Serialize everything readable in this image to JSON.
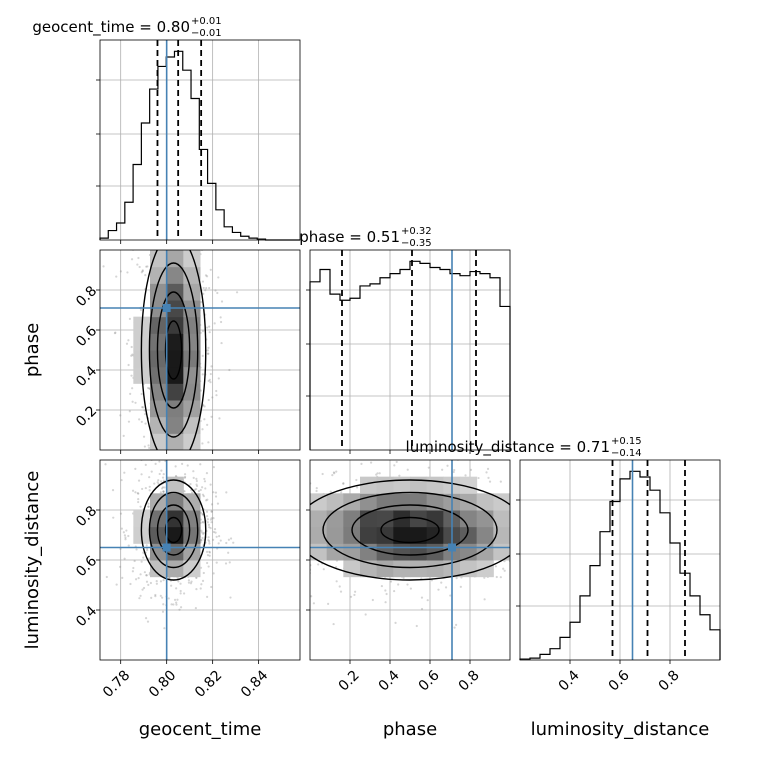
{
  "chart_data": {
    "type": "corner",
    "parameters": [
      "geocent_time",
      "phase",
      "luminosity_distance"
    ],
    "truths": {
      "geocent_time": 0.8,
      "phase": 0.71,
      "luminosity_distance": 0.65
    },
    "titles": [
      {
        "param": "geocent_time",
        "text": "geocent_time = 0.80",
        "plus": "+0.01",
        "minus": "−0.01"
      },
      {
        "param": "phase",
        "text": "phase = 0.51",
        "plus": "+0.32",
        "minus": "−0.35"
      },
      {
        "param": "luminosity_distance",
        "text": "luminosity_distance = 0.71",
        "plus": "+0.15",
        "minus": "−0.14"
      }
    ],
    "axes": {
      "geocent_time": {
        "range": [
          0.771,
          0.858
        ],
        "ticks": [
          0.78,
          0.8,
          0.82,
          0.84
        ],
        "tick_labels": [
          "0.78",
          "0.80",
          "0.82",
          "0.84"
        ],
        "label": "geocent_time"
      },
      "phase": {
        "range": [
          0.0,
          1.0
        ],
        "ticks": [
          0.2,
          0.4,
          0.6,
          0.8
        ],
        "tick_labels": [
          "0.2",
          "0.4",
          "0.6",
          "0.8"
        ],
        "label": "phase"
      },
      "luminosity_distance": {
        "range": [
          0.2,
          1.0
        ],
        "ticks": [
          0.4,
          0.6,
          0.8
        ],
        "tick_labels": [
          "0.4",
          "0.6",
          "0.8"
        ],
        "label": "luminosity_distance"
      }
    },
    "histograms": {
      "geocent_time": {
        "edges": [
          0.771,
          0.7746,
          0.7782,
          0.7818,
          0.7854,
          0.789,
          0.7926,
          0.7962,
          0.7998,
          0.8034,
          0.807,
          0.8106,
          0.8142,
          0.8178,
          0.8214,
          0.825,
          0.8286,
          0.8322,
          0.8358,
          0.8394,
          0.843,
          0.858
        ],
        "counts": [
          0.01,
          0.05,
          0.09,
          0.2,
          0.4,
          0.62,
          0.8,
          0.92,
          0.97,
          1.0,
          0.9,
          0.75,
          0.48,
          0.3,
          0.16,
          0.07,
          0.04,
          0.02,
          0.01,
          0.005,
          0.0
        ],
        "quantiles": [
          0.796,
          0.805,
          0.815
        ]
      },
      "phase": {
        "edges": [
          0.0,
          0.05,
          0.1,
          0.15,
          0.2,
          0.25,
          0.3,
          0.35,
          0.4,
          0.45,
          0.5,
          0.55,
          0.6,
          0.65,
          0.7,
          0.75,
          0.8,
          0.85,
          0.9,
          0.95,
          1.0
        ],
        "counts": [
          0.82,
          0.88,
          0.76,
          0.73,
          0.74,
          0.8,
          0.81,
          0.84,
          0.86,
          0.88,
          0.92,
          0.91,
          0.89,
          0.88,
          0.86,
          0.85,
          0.87,
          0.86,
          0.84,
          0.7
        ],
        "quantiles": [
          0.16,
          0.51,
          0.83
        ]
      },
      "luminosity_distance": {
        "edges": [
          0.2,
          0.24,
          0.28,
          0.32,
          0.36,
          0.4,
          0.44,
          0.48,
          0.52,
          0.56,
          0.6,
          0.64,
          0.68,
          0.72,
          0.76,
          0.8,
          0.84,
          0.88,
          0.92,
          0.96,
          1.0
        ],
        "counts": [
          0.005,
          0.01,
          0.03,
          0.06,
          0.12,
          0.2,
          0.34,
          0.5,
          0.68,
          0.84,
          0.96,
          1.0,
          0.97,
          0.9,
          0.78,
          0.62,
          0.46,
          0.34,
          0.24,
          0.16
        ],
        "quantiles": [
          0.57,
          0.71,
          0.86
        ]
      }
    },
    "density_2d": [
      {
        "x": "geocent_time",
        "y": "phase",
        "mu": [
          0.803,
          0.5
        ],
        "sigma": [
          0.007,
          0.29
        ]
      },
      {
        "x": "geocent_time",
        "y": "luminosity_distance",
        "mu": [
          0.803,
          0.72
        ],
        "sigma": [
          0.007,
          0.1
        ]
      },
      {
        "x": "phase",
        "y": "luminosity_distance",
        "mu": [
          0.5,
          0.72
        ],
        "sigma": [
          0.29,
          0.1
        ]
      }
    ],
    "truth_color": "#4682b4",
    "grid": true
  }
}
